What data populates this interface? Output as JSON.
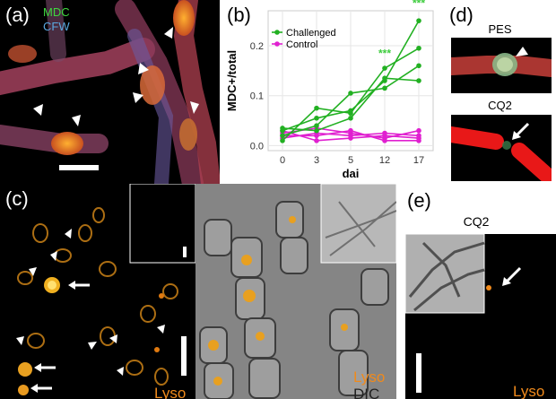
{
  "colors": {
    "challenged": "#22b022",
    "control": "#e020d0",
    "mdc": "#3fd83f",
    "cfw": "#5aa8e0",
    "lyso": "#f08a1c",
    "significance": "#3ccc3c"
  },
  "panel_a": {
    "label": "(a)",
    "stain1": "MDC",
    "stain2": "CFW"
  },
  "panel_b": {
    "label": "(b)"
  },
  "panel_c": {
    "label": "(c)",
    "stain_left": "Lyso",
    "stain_right_1": "Lyso",
    "stain_right_2": "DIC"
  },
  "panel_d": {
    "label": "(d)",
    "top_title": "PES",
    "bottom_title": "CQ2"
  },
  "panel_e": {
    "label": "(e)",
    "title": "CQ2",
    "stain": "Lyso"
  },
  "chart_data": {
    "type": "line",
    "xlabel": "dai",
    "ylabel": "MDC+/total",
    "x": [
      0,
      3,
      5,
      12,
      17
    ],
    "xticks": [
      "0",
      "3",
      "5",
      "12",
      "17"
    ],
    "ylim": [
      -0.01,
      0.27
    ],
    "yticks": [
      "0.0",
      "0.1",
      "0.2"
    ],
    "ytick_values": [
      0.0,
      0.1,
      0.2
    ],
    "grid": true,
    "legend_position": "top-left",
    "legend": [
      "Challenged",
      "Control"
    ],
    "significance_marks": [
      {
        "x": 12,
        "y": 0.185,
        "text": "***"
      },
      {
        "x": 17,
        "y": 0.285,
        "text": "***"
      }
    ],
    "series": [
      {
        "name": "Challenged",
        "group": "challenged",
        "values": [
          0.03,
          0.055,
          0.07,
          0.13,
          0.25
        ]
      },
      {
        "name": "Challenged",
        "group": "challenged",
        "values": [
          0.01,
          0.075,
          0.065,
          0.155,
          0.195
        ]
      },
      {
        "name": "Challenged",
        "group": "challenged",
        "values": [
          0.02,
          0.04,
          0.105,
          0.115,
          0.16
        ]
      },
      {
        "name": "Challenged",
        "group": "challenged",
        "values": [
          0.035,
          0.03,
          0.055,
          0.135,
          0.13
        ]
      },
      {
        "name": "Control",
        "group": "control",
        "values": [
          0.025,
          0.035,
          0.025,
          0.015,
          0.03
        ]
      },
      {
        "name": "Control",
        "group": "control",
        "values": [
          0.015,
          0.025,
          0.02,
          0.025,
          0.02
        ]
      },
      {
        "name": "Control",
        "group": "control",
        "values": [
          0.03,
          0.01,
          0.015,
          0.02,
          0.015
        ]
      },
      {
        "name": "Control",
        "group": "control",
        "values": [
          0.02,
          0.02,
          0.03,
          0.01,
          0.01
        ]
      }
    ]
  }
}
